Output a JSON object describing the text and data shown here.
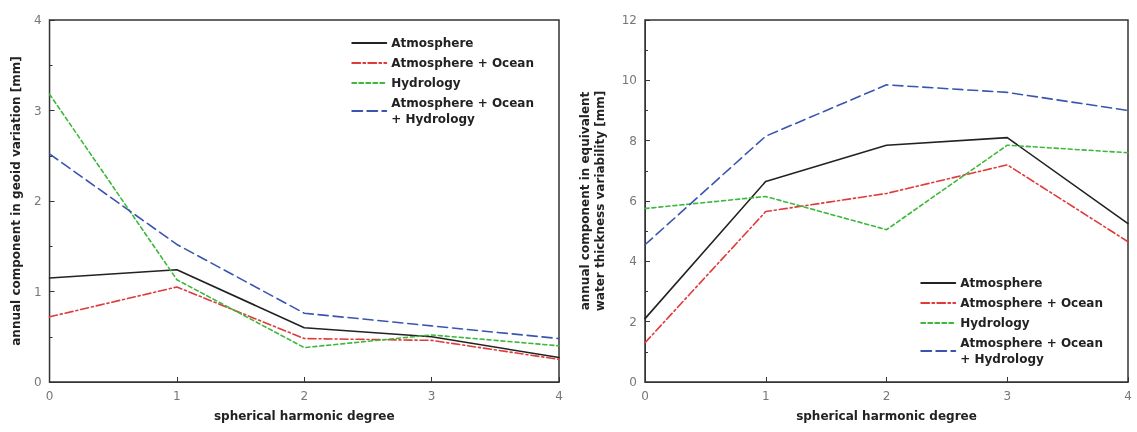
{
  "chart_data": [
    {
      "type": "line",
      "xlabel": "spherical harmonic degree",
      "ylabel": "annual component in geoid variation [mm]",
      "x": [
        0,
        1,
        2,
        3,
        4
      ],
      "xlim": [
        0,
        4
      ],
      "xticks": [
        0,
        1,
        2,
        3,
        4
      ],
      "ylim": [
        0,
        4
      ],
      "yticks": [
        0,
        1,
        2,
        3,
        4
      ],
      "legend": "top right",
      "grid": false,
      "marker": "none",
      "series": [
        {
          "name": "Atmosphere",
          "color": "#222222",
          "line_style": "solid",
          "values": [
            1.15,
            1.24,
            0.6,
            0.5,
            0.27
          ]
        },
        {
          "name": "Atmosphere + Ocean",
          "color": "#e03a3a",
          "line_style": "dashdot",
          "values": [
            0.72,
            1.05,
            0.48,
            0.46,
            0.25
          ]
        },
        {
          "name": "Hydrology",
          "color": "#3cb83c",
          "line_style": "dotted",
          "values": [
            3.18,
            1.13,
            0.38,
            0.52,
            0.4
          ]
        },
        {
          "name": "Atmosphere + Ocean\n+ Hydrology",
          "color": "#3a55b0",
          "line_style": "dashed",
          "values": [
            2.52,
            1.52,
            0.76,
            0.62,
            0.48
          ]
        }
      ]
    },
    {
      "type": "line",
      "xlabel": "spherical harmonic degree",
      "ylabel": "annual component in equivalent water thickness variability [mm]",
      "x": [
        0,
        1,
        2,
        3,
        4
      ],
      "xlim": [
        0,
        4
      ],
      "xticks": [
        0,
        1,
        2,
        3,
        4
      ],
      "ylim": [
        0,
        12
      ],
      "yticks": [
        0,
        2,
        4,
        6,
        8,
        10,
        12
      ],
      "legend": "bottom right",
      "grid": false,
      "marker": "none",
      "series": [
        {
          "name": "Atmosphere",
          "color": "#222222",
          "line_style": "solid",
          "values": [
            2.1,
            6.65,
            7.85,
            8.1,
            5.25
          ]
        },
        {
          "name": "Atmosphere + Ocean",
          "color": "#e03a3a",
          "line_style": "dashdot",
          "values": [
            1.3,
            5.65,
            6.25,
            7.2,
            4.65
          ]
        },
        {
          "name": "Hydrology",
          "color": "#3cb83c",
          "line_style": "dotted",
          "values": [
            5.75,
            6.15,
            5.05,
            7.85,
            7.6
          ]
        },
        {
          "name": "Atmosphere + Ocean\n+ Hydrology",
          "color": "#3a55b0",
          "line_style": "dashed",
          "values": [
            4.55,
            8.15,
            9.85,
            9.6,
            9.0
          ]
        }
      ]
    }
  ]
}
